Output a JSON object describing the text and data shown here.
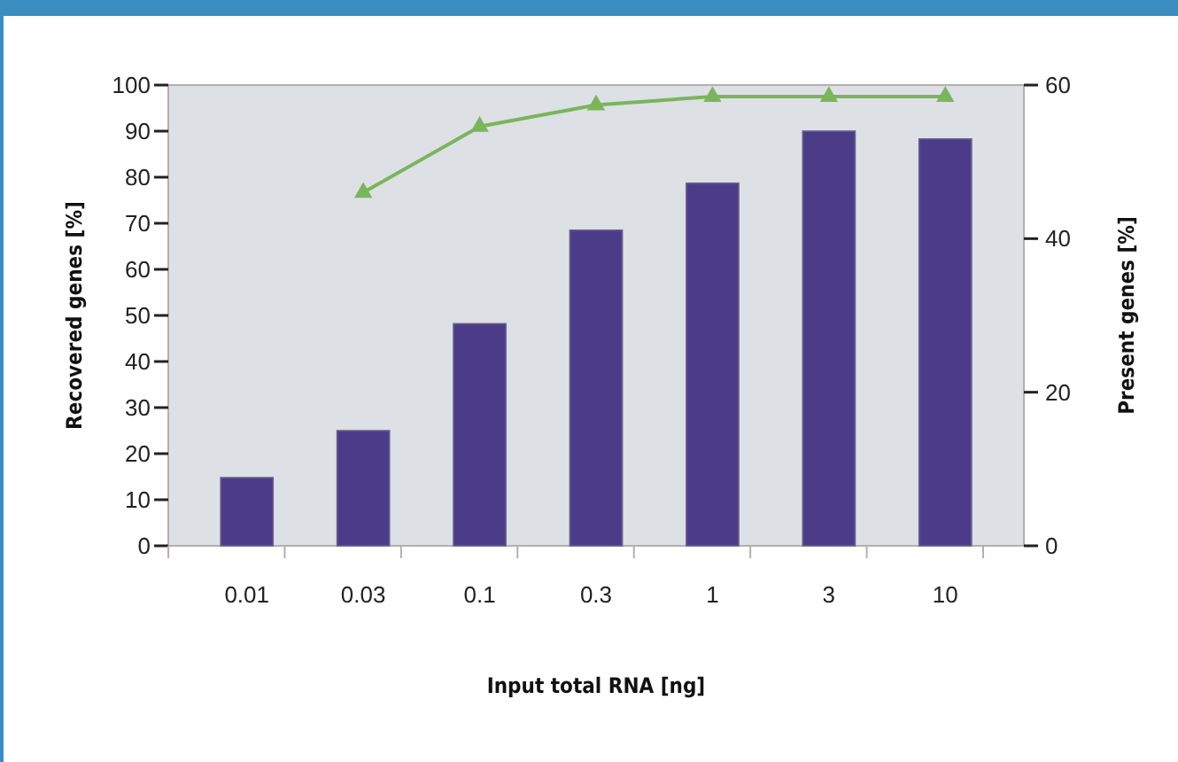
{
  "chart_data": {
    "type": "bar",
    "xlabel": "Input total RNA [ng]",
    "ylabel": "Recovered genes [%]",
    "y2label": "Present genes [%]",
    "categories": [
      "0.01",
      "0.03",
      "0.1",
      "0.3",
      "1",
      "3",
      "10"
    ],
    "series": [
      {
        "color": "#4b3c8a",
        "values": [
          14.8,
          25,
          48.2,
          68.5,
          78.7,
          90,
          88.3
        ]
      },
      {
        "type": "line",
        "axis": "y2",
        "color": "#7ab55c",
        "marker": "triangle",
        "values": [
          null,
          46,
          54.6,
          57.4,
          58.5,
          58.5,
          58.5
        ]
      }
    ],
    "ylim": [
      0,
      100
    ],
    "yticks": [
      0,
      10,
      20,
      30,
      40,
      50,
      60,
      70,
      80,
      90,
      100
    ],
    "y2lim": [
      0,
      60
    ],
    "y2ticks": [
      0,
      20,
      40,
      60
    ],
    "grid": false
  }
}
